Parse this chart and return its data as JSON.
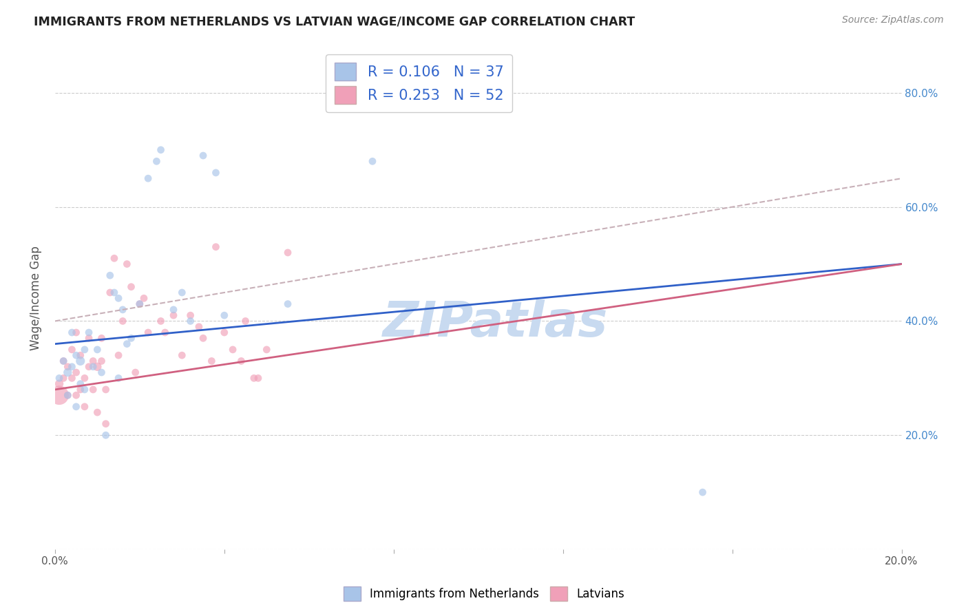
{
  "title": "IMMIGRANTS FROM NETHERLANDS VS LATVIAN WAGE/INCOME GAP CORRELATION CHART",
  "source": "Source: ZipAtlas.com",
  "ylabel": "Wage/Income Gap",
  "xlim": [
    0.0,
    0.2
  ],
  "ylim": [
    0.0,
    0.88
  ],
  "blue_R": 0.106,
  "blue_N": 37,
  "pink_R": 0.253,
  "pink_N": 52,
  "blue_color": "#a8c4e8",
  "pink_color": "#f0a0b8",
  "blue_line_color": "#3060c8",
  "pink_line_color": "#d06080",
  "dashed_line_color": "#c8b0b8",
  "watermark": "ZIPatlas",
  "watermark_color": "#c8daf0",
  "legend1_label": "Immigrants from Netherlands",
  "legend2_label": "Latvians",
  "yticks": [
    0.0,
    0.2,
    0.4,
    0.6,
    0.8
  ],
  "ytick_labels": [
    "",
    "20.0%",
    "40.0%",
    "60.0%",
    "80.0%"
  ],
  "xtick_labels": [
    "0.0%",
    "",
    "",
    "",
    "",
    "20.0%"
  ],
  "blue_x": [
    0.001,
    0.002,
    0.003,
    0.003,
    0.004,
    0.004,
    0.005,
    0.005,
    0.006,
    0.006,
    0.007,
    0.007,
    0.008,
    0.009,
    0.01,
    0.011,
    0.012,
    0.013,
    0.014,
    0.015,
    0.015,
    0.016,
    0.017,
    0.018,
    0.02,
    0.022,
    0.024,
    0.025,
    0.028,
    0.03,
    0.032,
    0.035,
    0.038,
    0.04,
    0.055,
    0.075,
    0.153
  ],
  "blue_y": [
    0.3,
    0.33,
    0.31,
    0.27,
    0.38,
    0.32,
    0.34,
    0.25,
    0.33,
    0.29,
    0.35,
    0.28,
    0.38,
    0.32,
    0.35,
    0.31,
    0.2,
    0.48,
    0.45,
    0.3,
    0.44,
    0.42,
    0.36,
    0.37,
    0.43,
    0.65,
    0.68,
    0.7,
    0.42,
    0.45,
    0.4,
    0.69,
    0.66,
    0.41,
    0.43,
    0.68,
    0.1
  ],
  "blue_sizes": [
    60,
    60,
    80,
    60,
    60,
    60,
    60,
    60,
    90,
    60,
    60,
    60,
    60,
    60,
    60,
    60,
    60,
    60,
    60,
    60,
    60,
    60,
    60,
    60,
    60,
    60,
    60,
    60,
    60,
    60,
    60,
    60,
    60,
    60,
    60,
    60,
    60
  ],
  "pink_x": [
    0.001,
    0.001,
    0.002,
    0.002,
    0.003,
    0.003,
    0.004,
    0.004,
    0.005,
    0.005,
    0.005,
    0.006,
    0.006,
    0.007,
    0.007,
    0.008,
    0.008,
    0.009,
    0.009,
    0.01,
    0.01,
    0.011,
    0.011,
    0.012,
    0.012,
    0.013,
    0.014,
    0.015,
    0.016,
    0.017,
    0.018,
    0.019,
    0.02,
    0.021,
    0.022,
    0.025,
    0.026,
    0.028,
    0.03,
    0.032,
    0.034,
    0.035,
    0.037,
    0.038,
    0.04,
    0.042,
    0.044,
    0.045,
    0.047,
    0.048,
    0.05,
    0.055
  ],
  "pink_y": [
    0.27,
    0.29,
    0.3,
    0.33,
    0.27,
    0.32,
    0.3,
    0.35,
    0.31,
    0.27,
    0.38,
    0.28,
    0.34,
    0.3,
    0.25,
    0.37,
    0.32,
    0.33,
    0.28,
    0.32,
    0.24,
    0.33,
    0.37,
    0.28,
    0.22,
    0.45,
    0.51,
    0.34,
    0.4,
    0.5,
    0.46,
    0.31,
    0.43,
    0.44,
    0.38,
    0.4,
    0.38,
    0.41,
    0.34,
    0.41,
    0.39,
    0.37,
    0.33,
    0.53,
    0.38,
    0.35,
    0.33,
    0.4,
    0.3,
    0.3,
    0.35,
    0.52
  ],
  "pink_sizes": [
    400,
    80,
    60,
    60,
    60,
    60,
    60,
    60,
    60,
    60,
    60,
    60,
    60,
    60,
    60,
    60,
    60,
    60,
    60,
    80,
    60,
    60,
    60,
    60,
    60,
    60,
    60,
    60,
    60,
    60,
    60,
    60,
    60,
    60,
    60,
    60,
    60,
    60,
    60,
    60,
    60,
    60,
    60,
    60,
    60,
    60,
    60,
    60,
    60,
    60,
    60,
    60
  ],
  "blue_trend": [
    0.36,
    0.5
  ],
  "pink_trend": [
    0.28,
    0.5
  ],
  "dashed_trend": [
    0.4,
    0.65
  ]
}
